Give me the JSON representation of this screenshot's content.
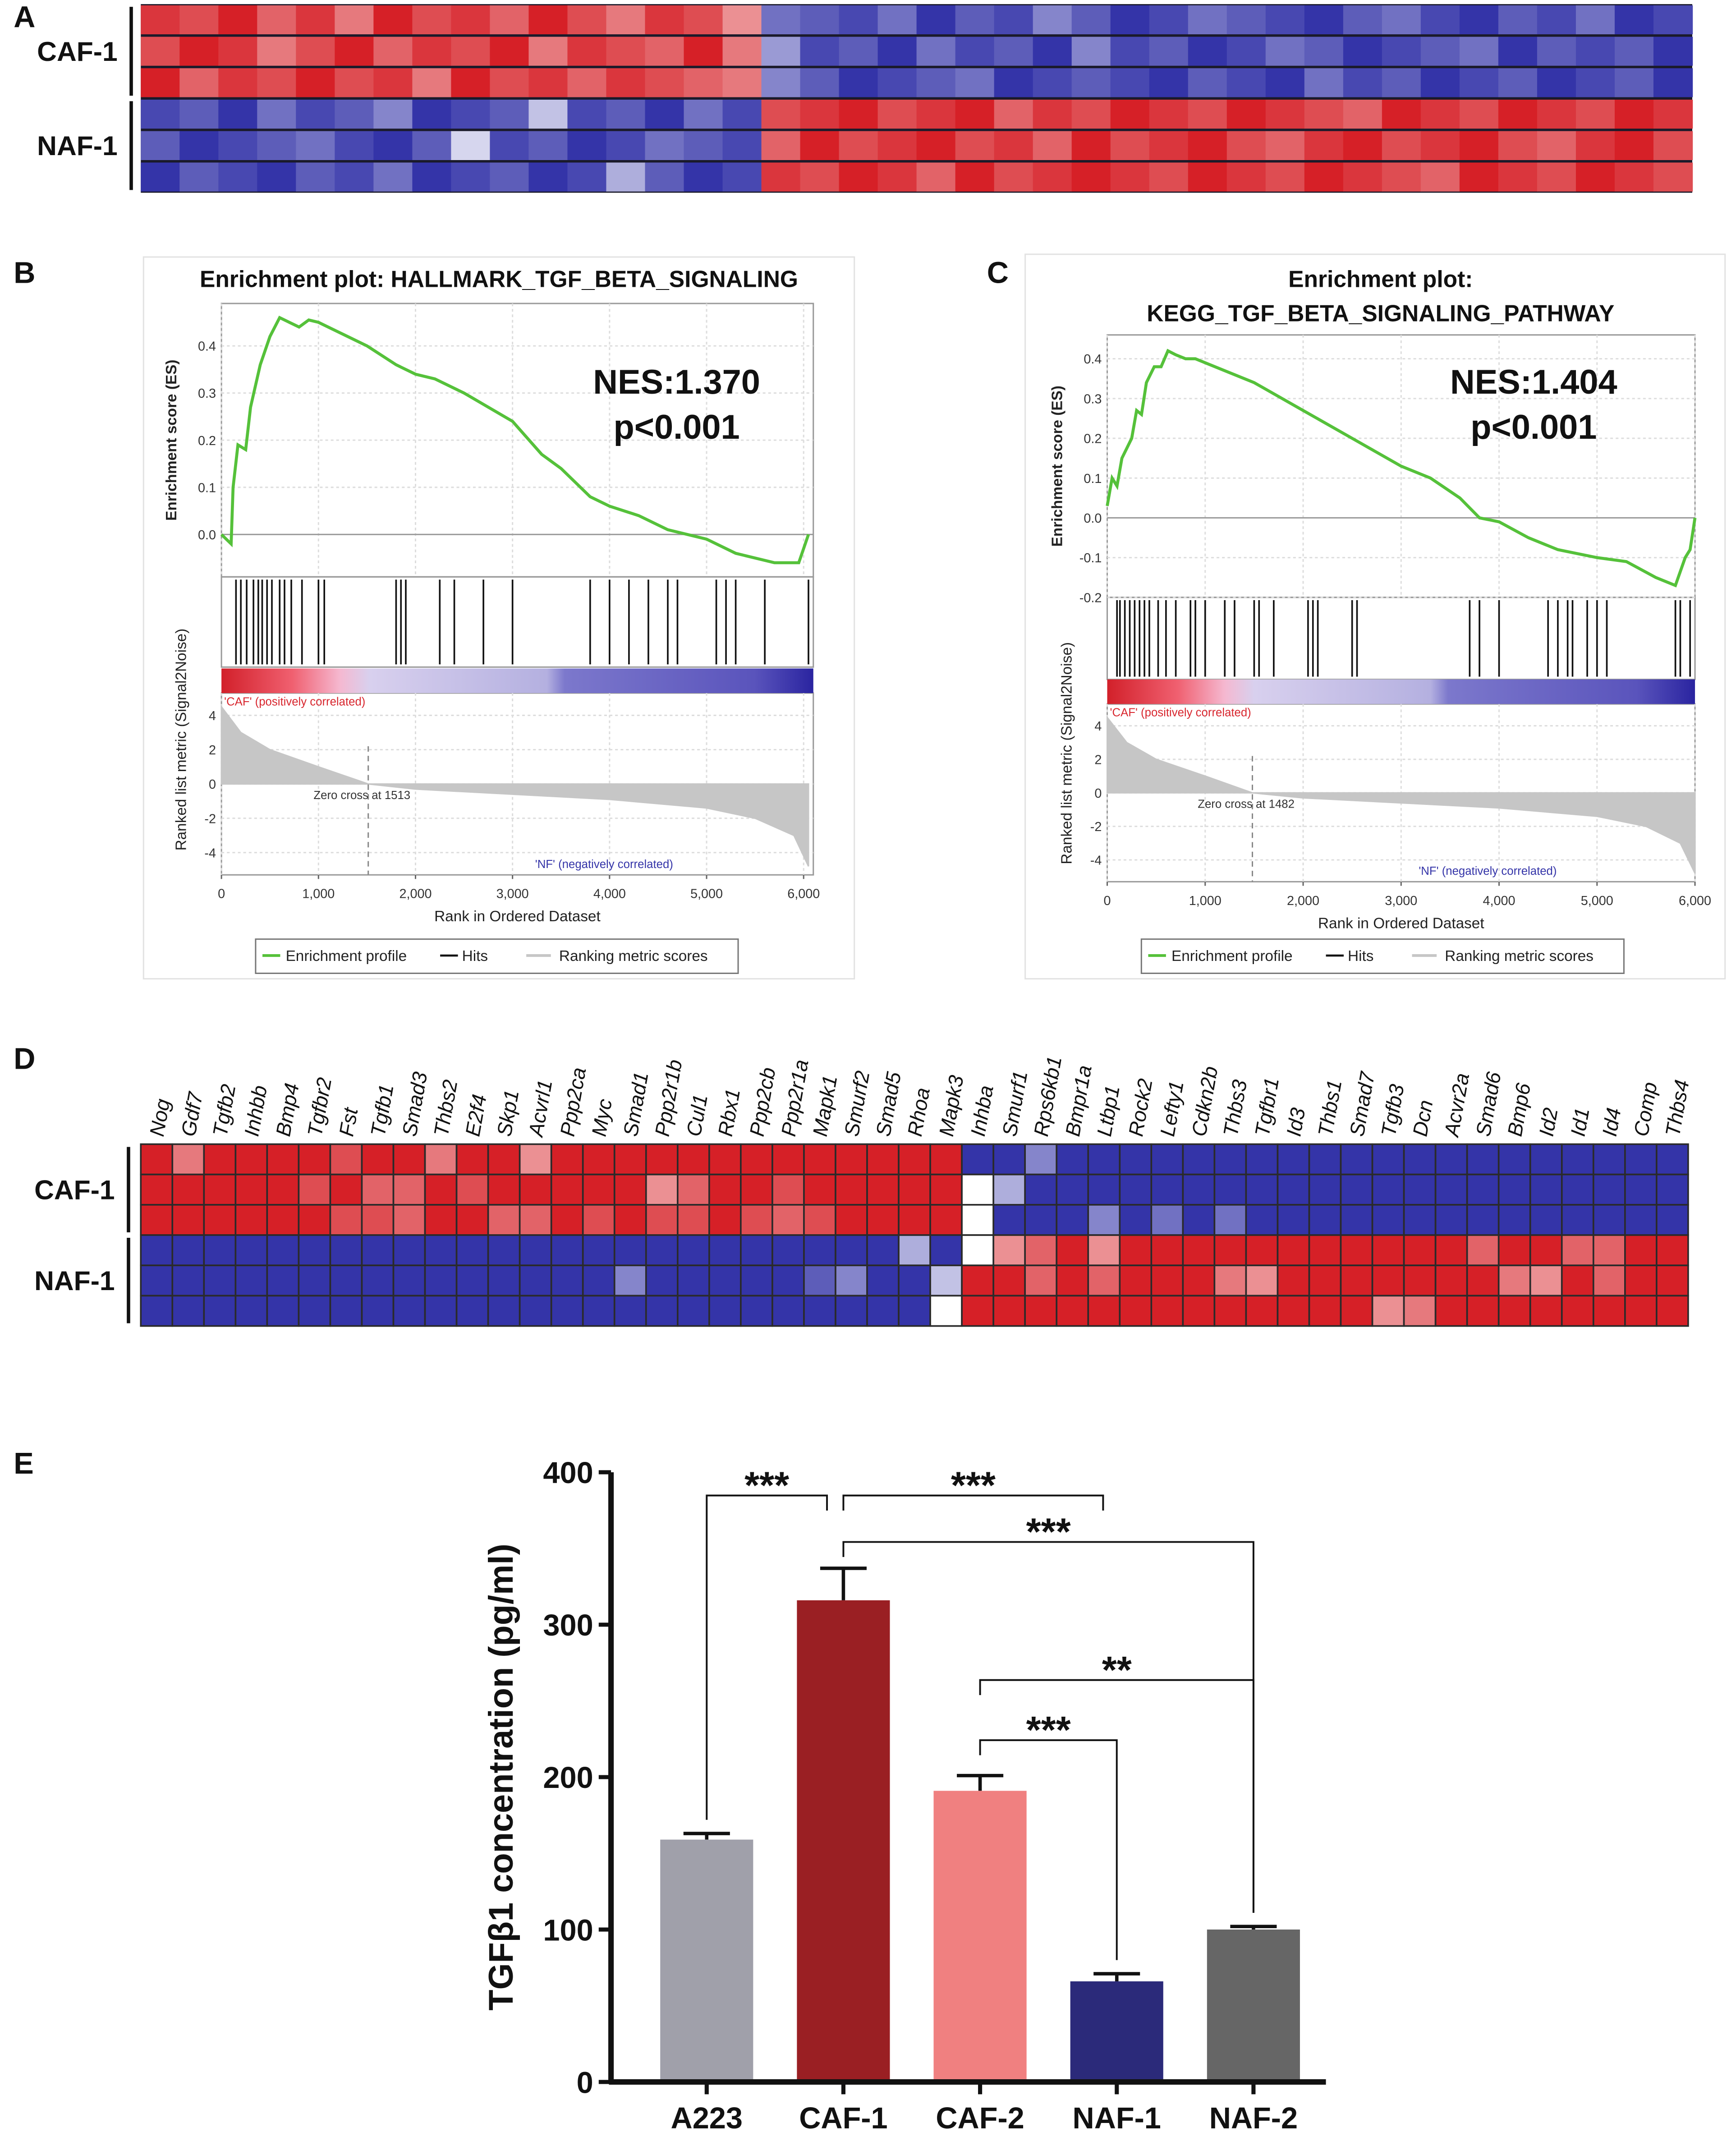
{
  "chart_data": [
    {
      "type": "heatmap",
      "panel": "A",
      "row_groups": [
        "CAF-1",
        "NAF-1"
      ],
      "cell_borders": false,
      "values": [
        [
          0.9,
          0.8,
          1,
          0.7,
          0.9,
          0.6,
          1,
          0.8,
          0.9,
          0.7,
          1,
          0.8,
          0.6,
          0.9,
          0.8,
          0.5,
          -0.7,
          -0.8,
          -0.9,
          -0.7,
          -1,
          -0.8,
          -0.9,
          -0.6,
          -0.8,
          -1,
          -0.9,
          -0.7,
          -0.8,
          -0.9,
          -1,
          -0.8,
          -0.7,
          -0.9,
          -1,
          -0.8,
          -0.9,
          -0.7,
          -1,
          -0.9
        ],
        [
          0.8,
          1,
          0.9,
          0.6,
          0.8,
          1,
          0.7,
          0.9,
          0.8,
          1,
          0.6,
          0.9,
          0.8,
          0.7,
          1,
          0.6,
          -0.5,
          -0.9,
          -0.8,
          -1,
          -0.7,
          -0.9,
          -0.8,
          -1,
          -0.6,
          -0.9,
          -0.8,
          -1,
          -0.9,
          -0.7,
          -0.8,
          -1,
          -0.9,
          -0.8,
          -0.7,
          -1,
          -0.8,
          -0.9,
          -0.8,
          -1
        ],
        [
          1,
          0.7,
          0.9,
          0.8,
          1,
          0.8,
          0.9,
          0.6,
          1,
          0.8,
          0.9,
          0.7,
          0.9,
          0.8,
          0.7,
          0.6,
          -0.6,
          -0.8,
          -1,
          -0.9,
          -0.8,
          -0.7,
          -1,
          -0.9,
          -0.8,
          -0.9,
          -1,
          -0.8,
          -0.9,
          -1,
          -0.7,
          -0.9,
          -0.8,
          -1,
          -0.9,
          -0.8,
          -1,
          -0.9,
          -0.8,
          -1
        ],
        [
          -0.9,
          -0.8,
          -1,
          -0.7,
          -0.9,
          -0.8,
          -0.6,
          -1,
          -0.9,
          -0.8,
          -0.3,
          -0.9,
          -0.8,
          -1,
          -0.7,
          -0.9,
          0.8,
          0.9,
          1,
          0.8,
          0.9,
          1,
          0.7,
          0.9,
          0.8,
          1,
          0.9,
          0.8,
          1,
          0.9,
          0.8,
          0.7,
          1,
          0.9,
          0.8,
          1,
          0.9,
          0.8,
          1,
          0.9
        ],
        [
          -0.8,
          -1,
          -0.9,
          -0.8,
          -0.7,
          -0.9,
          -1,
          -0.8,
          -0.2,
          -0.9,
          -0.8,
          -1,
          -0.9,
          -0.7,
          -0.8,
          -0.9,
          0.7,
          1,
          0.8,
          0.9,
          1,
          0.8,
          0.9,
          0.7,
          1,
          0.8,
          0.9,
          1,
          0.8,
          0.7,
          0.9,
          1,
          0.8,
          0.9,
          1,
          0.8,
          0.7,
          0.9,
          1,
          0.8
        ],
        [
          -1,
          -0.8,
          -0.9,
          -1,
          -0.8,
          -0.9,
          -0.7,
          -1,
          -0.9,
          -0.8,
          -1,
          -0.9,
          -0.4,
          -0.8,
          -1,
          -0.9,
          0.9,
          0.8,
          1,
          0.9,
          0.7,
          1,
          0.8,
          0.9,
          1,
          0.9,
          0.8,
          1,
          0.9,
          0.8,
          1,
          0.9,
          0.8,
          0.7,
          1,
          0.9,
          0.8,
          1,
          0.9,
          0.8
        ]
      ]
    },
    {
      "type": "gsea",
      "panel": "B",
      "title": [
        "Enrichment plot: HALLMARK_TGF_BETA_SIGNALING"
      ],
      "annotations": [
        "NES:1.370",
        "p<0.001"
      ],
      "ylabel": "Enrichment score (ES)",
      "metric_label": "Ranked list metric (Signal2Noise)",
      "xlabel": "Rank in Ordered Dataset",
      "pos_label": "'CAF' (positively correlated)",
      "neg_label": "'NF' (negatively correlated)",
      "zero_cross": 1513,
      "zero_cross_label": "Zero cross at 1513",
      "grid": true,
      "x": [
        0,
        100,
        120,
        170,
        250,
        300,
        400,
        500,
        600,
        700,
        800,
        900,
        1000,
        1200,
        1500,
        1800,
        2000,
        2200,
        2500,
        3000,
        3300,
        3500,
        3800,
        4000,
        4300,
        4600,
        5000,
        5300,
        5700,
        5950,
        6050
      ],
      "series": [
        {
          "name": "Enrichment profile",
          "color": "#55c13a",
          "values": [
            0,
            -0.02,
            0.1,
            0.19,
            0.18,
            0.27,
            0.36,
            0.42,
            0.46,
            0.45,
            0.44,
            0.455,
            0.45,
            0.43,
            0.4,
            0.36,
            0.34,
            0.33,
            0.3,
            0.24,
            0.17,
            0.14,
            0.08,
            0.06,
            0.04,
            0.01,
            -0.01,
            -0.04,
            -0.06,
            -0.06,
            0
          ]
        }
      ],
      "hits_name": "Hits",
      "hits_color": "#111111",
      "hits": [
        150,
        200,
        260,
        330,
        380,
        420,
        470,
        520,
        600,
        650,
        720,
        830,
        1000,
        1060,
        1800,
        1850,
        1900,
        2250,
        2400,
        2700,
        3000,
        3800,
        4000,
        4200,
        4400,
        4600,
        4700,
        5100,
        5200,
        5300,
        5600,
        6050
      ],
      "metric": {
        "name": "Ranking metric scores",
        "color": "#c6c6c6",
        "x": [
          0,
          200,
          500,
          1000,
          1513,
          2000,
          3000,
          4000,
          5000,
          5500,
          5900,
          6050
        ],
        "values": [
          4.5,
          3,
          2,
          1,
          0,
          -0.3,
          -0.6,
          -0.9,
          -1.4,
          -2,
          -3,
          -4.8
        ]
      },
      "xlim": [
        0,
        6100
      ],
      "xticks": [
        0,
        {
          "value": 1000,
          "label": "1,000"
        },
        {
          "value": 2000,
          "label": "2,000"
        },
        {
          "value": 3000,
          "label": "3,000"
        },
        {
          "value": 4000,
          "label": "4,000"
        },
        {
          "value": 5000,
          "label": "5,000"
        },
        {
          "value": 6000,
          "label": "6,000"
        }
      ],
      "ylim": [
        -0.09,
        0.49
      ],
      "yticks": [
        {
          "value": 0,
          "label": "0.0"
        },
        0.1,
        0.2,
        0.3,
        0.4
      ],
      "metric_ylim": [
        -5.3,
        5.3
      ],
      "metric_yticks": [
        -4,
        -2,
        0,
        2,
        4
      ]
    },
    {
      "type": "gsea",
      "panel": "C",
      "title": [
        "Enrichment plot:",
        "KEGG_TGF_BETA_SIGNALING_PATHWAY"
      ],
      "annotations": [
        "NES:1.404",
        "p<0.001"
      ],
      "ylabel": "Enrichment score (ES)",
      "metric_label": "Ranked list metric (Signal2Noise)",
      "xlabel": "Rank in Ordered Dataset",
      "pos_label": "'CAF' (positively correlated)",
      "neg_label": "'NF' (negatively correlated)",
      "zero_cross": 1482,
      "zero_cross_label": "Zero cross at 1482",
      "grid": true,
      "x": [
        0,
        50,
        100,
        150,
        250,
        300,
        350,
        400,
        480,
        550,
        620,
        700,
        800,
        900,
        1200,
        1500,
        2000,
        2500,
        3000,
        3300,
        3600,
        3800,
        4000,
        4300,
        4600,
        5000,
        5300,
        5600,
        5800,
        5900,
        5950,
        6000
      ],
      "series": [
        {
          "name": "Enrichment profile",
          "color": "#55c13a",
          "values": [
            0.03,
            0.1,
            0.08,
            0.15,
            0.2,
            0.27,
            0.26,
            0.34,
            0.38,
            0.38,
            0.42,
            0.41,
            0.4,
            0.4,
            0.37,
            0.34,
            0.27,
            0.2,
            0.13,
            0.1,
            0.05,
            0,
            -0.01,
            -0.05,
            -0.08,
            -0.1,
            -0.11,
            -0.15,
            -0.17,
            -0.1,
            -0.08,
            0
          ]
        }
      ],
      "hits_name": "Hits",
      "hits_color": "#111111",
      "hits": [
        100,
        130,
        180,
        230,
        280,
        330,
        380,
        430,
        520,
        600,
        700,
        850,
        900,
        1000,
        1200,
        1300,
        1500,
        1550,
        1700,
        2050,
        2100,
        2150,
        2500,
        2550,
        3700,
        3800,
        4000,
        4500,
        4600,
        4700,
        4750,
        4900,
        5000,
        5100,
        5800,
        5850,
        5950
      ],
      "metric": {
        "name": "Ranking metric scores",
        "color": "#c6c6c6",
        "x": [
          0,
          200,
          500,
          1000,
          1482,
          2000,
          3000,
          4000,
          5000,
          5500,
          5850,
          6000
        ],
        "values": [
          4.5,
          3,
          2,
          1,
          0,
          -0.3,
          -0.6,
          -0.9,
          -1.4,
          -2,
          -3,
          -4.8
        ]
      },
      "xlim": [
        0,
        6000
      ],
      "xticks": [
        0,
        {
          "value": 1000,
          "label": "1,000"
        },
        {
          "value": 2000,
          "label": "2,000"
        },
        {
          "value": 3000,
          "label": "3,000"
        },
        {
          "value": 4000,
          "label": "4,000"
        },
        {
          "value": 5000,
          "label": "5,000"
        },
        {
          "value": 6000,
          "label": "6,000"
        }
      ],
      "ylim": [
        -0.2,
        0.46
      ],
      "yticks": [
        -0.2,
        -0.1,
        {
          "value": 0,
          "label": "0.0"
        },
        0.1,
        0.2,
        0.3,
        0.4
      ],
      "metric_ylim": [
        -5.3,
        5.3
      ],
      "metric_yticks": [
        -4,
        -2,
        0,
        2,
        4
      ]
    },
    {
      "type": "heatmap",
      "panel": "D",
      "row_groups": [
        "CAF-1",
        "NAF-1"
      ],
      "cell_borders": true,
      "columns": [
        "Nog",
        "Gdf7",
        "Tgfb2",
        "Inhbb",
        "Bmp4",
        "Tgfbr2",
        "Fst",
        "Tgfb1",
        "Smad3",
        "Thbs2",
        "E2f4",
        "Skp1",
        "Acvrl1",
        "Ppp2ca",
        "Myc",
        "Smad1",
        "Ppp2r1b",
        "Cul1",
        "Rbx1",
        "Ppp2cb",
        "Ppp2r1a",
        "Mapk1",
        "Smurf2",
        "Smad5",
        "Rhoa",
        "Mapk3",
        "Inhba",
        "Smurf1",
        "Rps6kb1",
        "Bmpr1a",
        "Ltbp1",
        "Rock2",
        "Lefty1",
        "Cdkn2b",
        "Thbs3",
        "Tgfbr1",
        "Id3",
        "Thbs1",
        "Smad7",
        "Tgfb3",
        "Dcn",
        "Acvr2a",
        "Smad6",
        "Bmp6",
        "Id2",
        "Id1",
        "Id4",
        "Comp",
        "Thbs4"
      ],
      "values": [
        [
          1,
          0.6,
          1,
          1,
          1,
          1,
          0.8,
          1,
          1,
          0.6,
          1,
          1,
          0.5,
          1,
          1,
          1,
          1,
          1,
          1,
          1,
          1,
          1,
          1,
          1,
          1,
          1,
          -1,
          -1,
          -0.6,
          -1,
          -1,
          -1,
          -1,
          -1,
          -1,
          -1,
          -1,
          -1,
          -1,
          -1,
          -1,
          -1,
          -1,
          -1,
          -1,
          -1,
          -1,
          -1,
          -1
        ],
        [
          1,
          1,
          1,
          1,
          1,
          0.8,
          1,
          0.7,
          0.7,
          1,
          0.8,
          1,
          1,
          1,
          1,
          1,
          0.5,
          0.7,
          1,
          1,
          0.8,
          1,
          1,
          1,
          1,
          1,
          0,
          -0.4,
          -1,
          -1,
          -1,
          -1,
          -1,
          -1,
          -1,
          -1,
          -1,
          -1,
          -1,
          -1,
          -1,
          -1,
          -1,
          -1,
          -1,
          -1,
          -1,
          -1,
          -1
        ],
        [
          1,
          1,
          1,
          1,
          1,
          1,
          0.8,
          0.8,
          0.7,
          1,
          1,
          0.7,
          0.7,
          1,
          0.8,
          1,
          0.8,
          0.8,
          1,
          0.8,
          0.7,
          0.8,
          1,
          1,
          1,
          1,
          0,
          -1,
          -1,
          -1,
          -0.6,
          -1,
          -0.7,
          -1,
          -0.7,
          -1,
          -1,
          -1,
          -1,
          -1,
          -1,
          -1,
          -1,
          -1,
          -1,
          -1,
          -1,
          -1,
          -1
        ],
        [
          -1,
          -1,
          -1,
          -1,
          -1,
          -1,
          -1,
          -1,
          -1,
          -1,
          -1,
          -1,
          -1,
          -1,
          -1,
          -1,
          -1,
          -1,
          -1,
          -1,
          -1,
          -1,
          -1,
          -1,
          -0.4,
          -1,
          0,
          0.5,
          0.7,
          1,
          0.5,
          1,
          1,
          1,
          1,
          1,
          1,
          1,
          1,
          1,
          1,
          1,
          0.7,
          1,
          1,
          0.7,
          0.7,
          1,
          1
        ],
        [
          -1,
          -1,
          -1,
          -1,
          -1,
          -1,
          -1,
          -1,
          -1,
          -1,
          -1,
          -1,
          -1,
          -1,
          -1,
          -0.6,
          -1,
          -1,
          -1,
          -1,
          -1,
          -0.8,
          -0.6,
          -1,
          -1,
          -0.3,
          1,
          1,
          0.7,
          1,
          0.7,
          1,
          1,
          1,
          0.6,
          0.5,
          1,
          1,
          1,
          1,
          1,
          1,
          1,
          0.6,
          0.5,
          1,
          0.7,
          1,
          1
        ],
        [
          -1,
          -1,
          -1,
          -1,
          -1,
          -1,
          -1,
          -1,
          -1,
          -1,
          -1,
          -1,
          -1,
          -1,
          -1,
          -1,
          -1,
          -1,
          -1,
          -1,
          -1,
          -1,
          -1,
          -1,
          -1,
          0,
          1,
          1,
          1,
          1,
          1,
          1,
          1,
          1,
          1,
          1,
          1,
          1,
          1,
          0.5,
          0.6,
          1,
          1,
          1,
          1,
          1,
          1,
          1,
          1
        ]
      ]
    },
    {
      "type": "bar",
      "panel": "E",
      "ylabel": "TGFβ1 concentration (pg/ml)",
      "categories": [
        "A223",
        "CAF-1",
        "CAF-2",
        "NAF-1",
        "NAF-2"
      ],
      "values": [
        159,
        316,
        191,
        66,
        100
      ],
      "errors": [
        4,
        21,
        10,
        5,
        2
      ],
      "colors": [
        "#a0a0aa",
        "#9a1f23",
        "#f08080",
        "#2b2a7a",
        "#666666"
      ],
      "ylim": [
        0,
        400
      ],
      "yticks": [
        0,
        100,
        200,
        300,
        400
      ],
      "significance": [
        {
          "from": "A223",
          "to": "CAF-1",
          "label": "***"
        },
        {
          "from": "CAF-1",
          "to": "NAF-1",
          "label": "***"
        },
        {
          "from": "CAF-1",
          "to": "NAF-2",
          "label": "***"
        },
        {
          "from": "CAF-2",
          "to": "NAF-2",
          "label": "**"
        },
        {
          "from": "CAF-2",
          "to": "NAF-1",
          "label": "***"
        }
      ]
    }
  ]
}
